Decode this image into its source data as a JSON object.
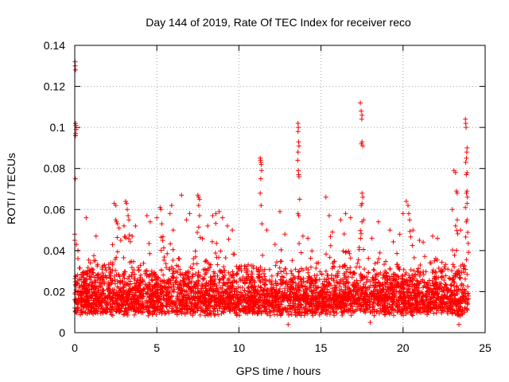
{
  "chart_data": {
    "type": "scatter",
    "title": "Day 144 of 2019, Rate Of TEC Index for receiver reco",
    "xlabel": "GPS time / hours",
    "ylabel": "ROTI / TECUs",
    "xlim": [
      0,
      25
    ],
    "ylim": [
      0,
      0.14
    ],
    "xticks": [
      0,
      5,
      10,
      15,
      20,
      25
    ],
    "yticks": [
      0,
      0.02,
      0.04,
      0.06,
      0.08,
      0.1,
      0.12,
      0.14
    ],
    "xtick_labels": [
      "0",
      "5",
      "10",
      "15",
      "20",
      "25"
    ],
    "ytick_labels": [
      "0",
      "0.02",
      "0.04",
      "0.06",
      "0.08",
      "0.1",
      "0.12",
      "0.14"
    ],
    "grid": true,
    "marker": "+",
    "marker_color": "#ff0000",
    "series": [
      {
        "name": "ROTI",
        "points": [
          [
            0.02,
            0.132
          ],
          [
            0.03,
            0.13
          ],
          [
            0.05,
            0.128
          ],
          [
            0.05,
            0.102
          ],
          [
            0.07,
            0.101
          ],
          [
            0.08,
            0.099
          ],
          [
            0.06,
            0.097
          ],
          [
            0.05,
            0.096
          ],
          [
            0.04,
            0.075
          ],
          [
            0.0,
            0.048
          ],
          [
            0.0,
            0.045
          ],
          [
            0.1,
            0.043
          ],
          [
            0.2,
            0.04
          ],
          [
            0.7,
            0.056
          ],
          [
            1.3,
            0.047
          ],
          [
            2.4,
            0.063
          ],
          [
            2.5,
            0.062
          ],
          [
            2.5,
            0.055
          ],
          [
            2.55,
            0.054
          ],
          [
            2.6,
            0.053
          ],
          [
            2.7,
            0.051
          ],
          [
            2.8,
            0.045
          ],
          [
            3.0,
            0.052
          ],
          [
            3.1,
            0.064
          ],
          [
            3.15,
            0.063
          ],
          [
            3.2,
            0.06
          ],
          [
            3.25,
            0.057
          ],
          [
            3.3,
            0.055
          ],
          [
            3.5,
            0.047
          ],
          [
            3.7,
            0.052
          ],
          [
            4.4,
            0.057
          ],
          [
            4.6,
            0.054
          ],
          [
            5.0,
            0.056
          ],
          [
            5.2,
            0.061
          ],
          [
            5.25,
            0.06
          ],
          [
            5.3,
            0.053
          ],
          [
            5.8,
            0.058
          ],
          [
            5.9,
            0.062
          ],
          [
            6.0,
            0.05
          ],
          [
            6.5,
            0.067
          ],
          [
            6.8,
            0.055
          ],
          [
            7.0,
            0.058
          ],
          [
            7.5,
            0.067
          ],
          [
            7.55,
            0.066
          ],
          [
            7.6,
            0.065
          ],
          [
            7.55,
            0.062
          ],
          [
            7.6,
            0.057
          ],
          [
            8.1,
            0.052
          ],
          [
            8.4,
            0.057
          ],
          [
            8.6,
            0.058
          ],
          [
            8.8,
            0.059
          ],
          [
            9.0,
            0.056
          ],
          [
            9.3,
            0.052
          ],
          [
            9.6,
            0.05
          ],
          [
            11.3,
            0.085
          ],
          [
            11.32,
            0.084
          ],
          [
            11.34,
            0.083
          ],
          [
            11.36,
            0.082
          ],
          [
            11.38,
            0.079
          ],
          [
            11.33,
            0.075
          ],
          [
            11.3,
            0.068
          ],
          [
            11.35,
            0.062
          ],
          [
            11.4,
            0.053
          ],
          [
            11.7,
            0.05
          ],
          [
            12.2,
            0.043
          ],
          [
            12.5,
            0.059
          ],
          [
            12.8,
            0.048
          ],
          [
            13.6,
            0.102
          ],
          [
            13.62,
            0.1
          ],
          [
            13.6,
            0.098
          ],
          [
            13.64,
            0.093
          ],
          [
            13.66,
            0.091
          ],
          [
            13.6,
            0.088
          ],
          [
            13.58,
            0.084
          ],
          [
            13.62,
            0.079
          ],
          [
            13.64,
            0.077
          ],
          [
            13.66,
            0.076
          ],
          [
            13.7,
            0.065
          ],
          [
            13.6,
            0.058
          ],
          [
            13.65,
            0.057
          ],
          [
            13.9,
            0.047
          ],
          [
            14.2,
            0.046
          ],
          [
            15.3,
            0.066
          ],
          [
            15.5,
            0.057
          ],
          [
            15.7,
            0.049
          ],
          [
            16.2,
            0.055
          ],
          [
            16.5,
            0.058
          ],
          [
            16.8,
            0.056
          ],
          [
            17.4,
            0.112
          ],
          [
            17.45,
            0.108
          ],
          [
            17.5,
            0.106
          ],
          [
            17.48,
            0.104
          ],
          [
            17.5,
            0.093
          ],
          [
            17.46,
            0.092
          ],
          [
            17.55,
            0.091
          ],
          [
            17.5,
            0.068
          ],
          [
            17.55,
            0.066
          ],
          [
            17.5,
            0.063
          ],
          [
            17.45,
            0.062
          ],
          [
            17.6,
            0.055
          ],
          [
            17.5,
            0.054
          ],
          [
            18.1,
            0.046
          ],
          [
            18.5,
            0.054
          ],
          [
            19.2,
            0.05
          ],
          [
            19.8,
            0.048
          ],
          [
            20.0,
            0.058
          ],
          [
            20.2,
            0.064
          ],
          [
            20.3,
            0.062
          ],
          [
            20.35,
            0.058
          ],
          [
            20.4,
            0.055
          ],
          [
            20.6,
            0.05
          ],
          [
            21.0,
            0.045
          ],
          [
            21.8,
            0.047
          ],
          [
            22.1,
            0.046
          ],
          [
            23.1,
            0.079
          ],
          [
            23.2,
            0.078
          ],
          [
            23.25,
            0.069
          ],
          [
            23.3,
            0.068
          ],
          [
            23.0,
            0.06
          ],
          [
            23.3,
            0.055
          ],
          [
            23.2,
            0.052
          ],
          [
            23.5,
            0.05
          ],
          [
            23.8,
            0.061
          ],
          [
            23.9,
            0.055
          ],
          [
            23.85,
            0.054
          ],
          [
            23.8,
            0.104
          ],
          [
            23.82,
            0.102
          ],
          [
            23.84,
            0.1
          ],
          [
            23.9,
            0.09
          ],
          [
            23.88,
            0.088
          ],
          [
            23.86,
            0.085
          ],
          [
            23.82,
            0.083
          ],
          [
            23.9,
            0.078
          ],
          [
            23.85,
            0.077
          ],
          [
            23.9,
            0.069
          ],
          [
            23.86,
            0.068
          ],
          [
            23.92,
            0.066
          ],
          [
            23.9,
            0.063
          ],
          [
            23.4,
            0.004
          ],
          [
            13.0,
            0.004
          ],
          [
            18.0,
            0.005
          ]
        ]
      }
    ],
    "dense_band": {
      "description": "dense continuous cloud of points between 0 and 24 hours",
      "x_range": [
        0,
        24
      ],
      "y_range": [
        0.005,
        0.045
      ],
      "typical_value": 0.017
    }
  }
}
